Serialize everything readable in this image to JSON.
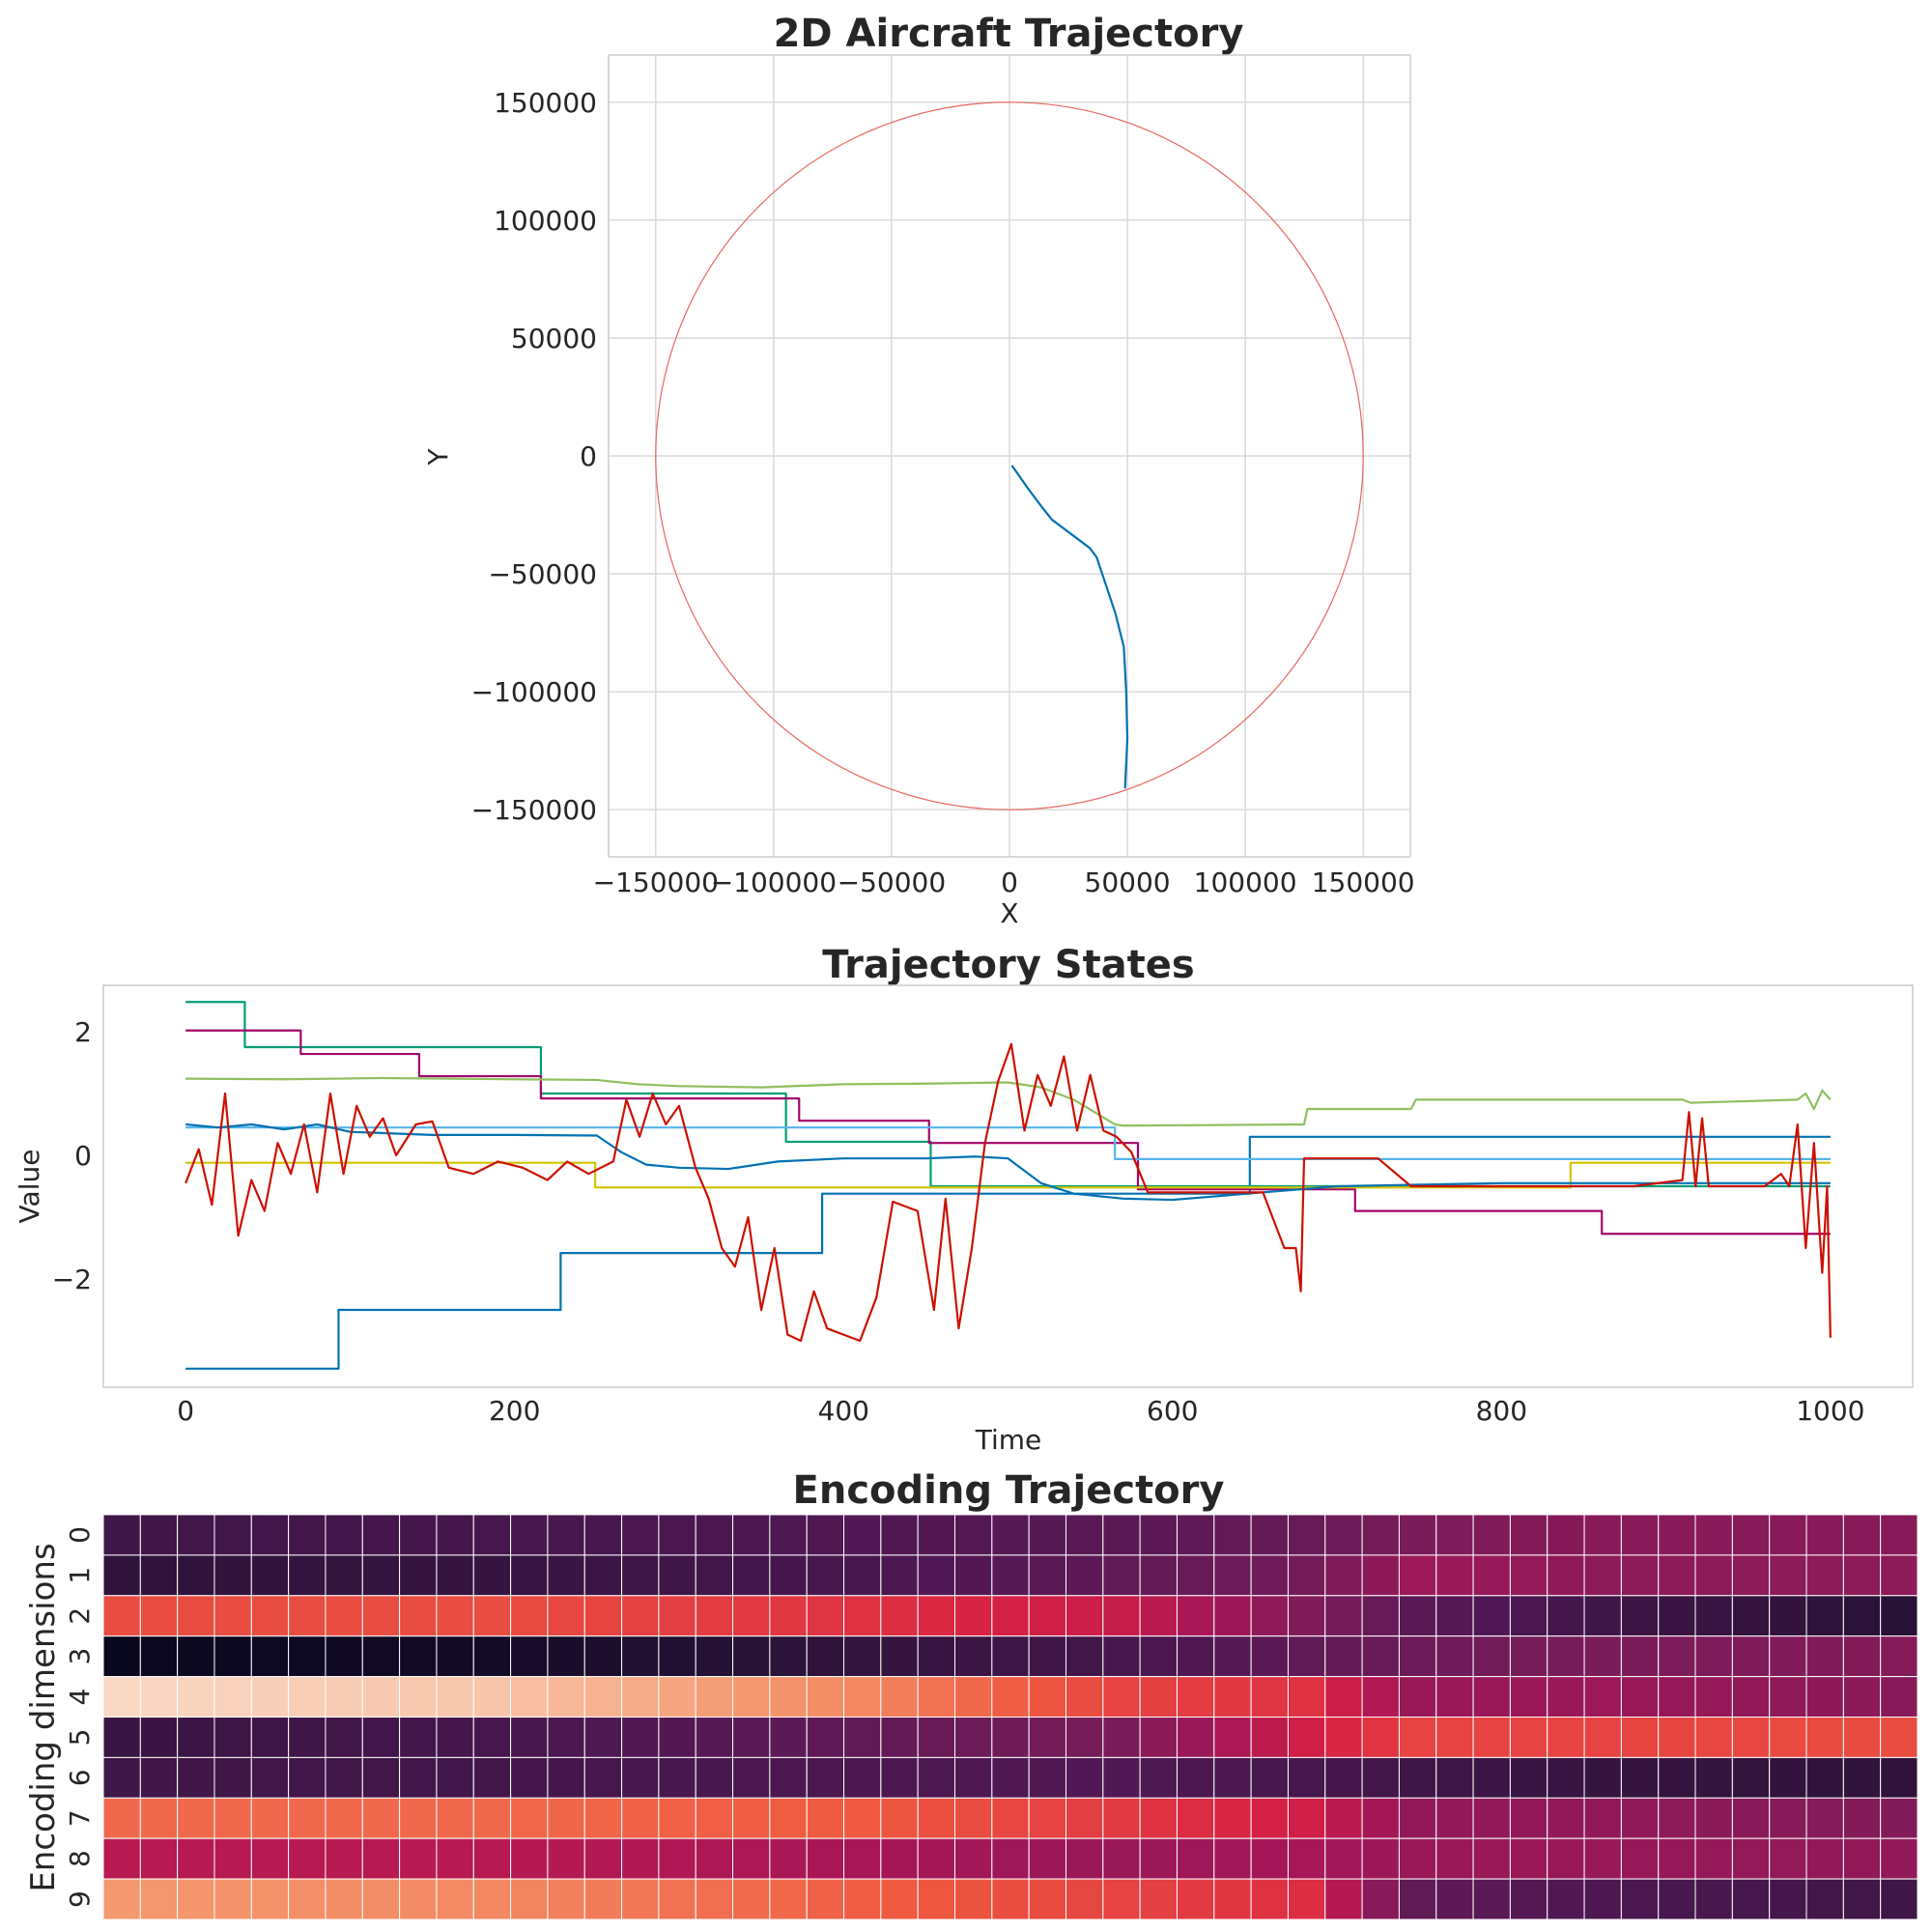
{
  "chart_data": [
    {
      "type": "line",
      "title": "2D Aircraft Trajectory",
      "xlabel": "X",
      "ylabel": "Y",
      "xlim": [
        -170000,
        170000
      ],
      "ylim": [
        -170000,
        170000
      ],
      "xticks": [
        -150000,
        -100000,
        -50000,
        0,
        50000,
        100000,
        150000
      ],
      "yticks": [
        -150000,
        -100000,
        -50000,
        0,
        50000,
        100000,
        150000
      ],
      "xtick_labels": [
        "−150000",
        "−100000",
        "−50000",
        "0",
        "50000",
        "100000",
        "150000"
      ],
      "ytick_labels": [
        "−150000",
        "−100000",
        "−50000",
        "0",
        "50000",
        "100000",
        "150000"
      ],
      "grid": true,
      "circle": {
        "cx": 0,
        "cy": 0,
        "r": 150000,
        "color": "#e8675f"
      },
      "series": [
        {
          "color": "#0072b2",
          "x": [
            49000,
            50000,
            49500,
            48500,
            45000,
            40000,
            37000,
            34000,
            26000,
            18000,
            14000,
            8000,
            1000
          ],
          "y": [
            -141000,
            -120000,
            -100000,
            -81000,
            -67000,
            -52000,
            -43000,
            -39000,
            -33000,
            -27000,
            -22000,
            -14000,
            -4000
          ]
        }
      ]
    },
    {
      "type": "line",
      "title": "Trajectory States",
      "xlabel": "Time",
      "ylabel": "Value",
      "xlim": [
        -50,
        1050
      ],
      "ylim": [
        -3.75,
        2.75
      ],
      "xticks": [
        0,
        200,
        400,
        600,
        800,
        1000
      ],
      "yticks": [
        -2,
        0,
        2
      ],
      "xtick_labels": [
        "0",
        "200",
        "400",
        "600",
        "800",
        "1000"
      ],
      "ytick_labels": [
        "−2",
        "0",
        "2"
      ],
      "grid": false,
      "series": [
        {
          "color": "#0072b2",
          "x": [
            0,
            93,
            93,
            228,
            228,
            387,
            387,
            647,
            647,
            1000
          ],
          "y": [
            -3.45,
            -3.45,
            -2.5,
            -2.5,
            -1.58,
            -1.58,
            -0.62,
            -0.62,
            0.3,
            0.3
          ]
        },
        {
          "color": "#009e73",
          "x": [
            0,
            36,
            36,
            216,
            216,
            365,
            365,
            453,
            453,
            1000
          ],
          "y": [
            2.48,
            2.48,
            1.75,
            1.75,
            1.0,
            1.0,
            0.22,
            0.22,
            -0.5,
            -0.5
          ]
        },
        {
          "color": "#a3066b",
          "x": [
            0,
            70,
            70,
            142,
            142,
            216,
            216,
            373,
            373,
            452,
            452,
            579,
            579,
            711,
            711,
            861,
            861,
            1000
          ],
          "y": [
            2.02,
            2.02,
            1.64,
            1.64,
            1.28,
            1.28,
            0.92,
            0.92,
            0.56,
            0.56,
            0.2,
            0.2,
            -0.55,
            -0.55,
            -0.9,
            -0.9,
            -1.27,
            -1.27
          ]
        },
        {
          "color": "#56b4e9",
          "x": [
            0,
            565,
            565,
            1000
          ],
          "y": [
            0.45,
            0.45,
            -0.06,
            -0.06
          ]
        },
        {
          "color": "#d4c400",
          "x": [
            0,
            249,
            249,
            842,
            842,
            1000
          ],
          "y": [
            -0.12,
            -0.12,
            -0.52,
            -0.52,
            -0.12,
            -0.12
          ]
        },
        {
          "color": "#8fbf5f",
          "x": [
            0,
            60,
            120,
            200,
            250,
            275,
            300,
            350,
            400,
            450,
            500,
            520,
            540,
            565,
            570,
            680,
            682,
            745,
            748,
            910,
            915,
            980,
            985,
            990,
            995,
            1000
          ],
          "y": [
            1.24,
            1.23,
            1.25,
            1.23,
            1.22,
            1.15,
            1.12,
            1.1,
            1.15,
            1.16,
            1.18,
            1.1,
            0.9,
            0.5,
            0.48,
            0.5,
            0.75,
            0.75,
            0.9,
            0.9,
            0.85,
            0.9,
            1.0,
            0.75,
            1.05,
            0.9
          ]
        },
        {
          "color": "#0072b2",
          "x": [
            0,
            20,
            40,
            60,
            80,
            100,
            150,
            200,
            250,
            265,
            280,
            300,
            330,
            360,
            400,
            450,
            480,
            500,
            520,
            540,
            570,
            600,
            700,
            800,
            900,
            1000
          ],
          "y": [
            0.5,
            0.45,
            0.5,
            0.42,
            0.5,
            0.38,
            0.33,
            0.33,
            0.32,
            0.05,
            -0.15,
            -0.2,
            -0.22,
            -0.1,
            -0.05,
            -0.05,
            -0.02,
            -0.05,
            -0.45,
            -0.62,
            -0.7,
            -0.72,
            -0.5,
            -0.45,
            -0.45,
            -0.45
          ]
        },
        {
          "color": "#cc1100",
          "x": [
            0,
            8,
            16,
            24,
            32,
            40,
            48,
            56,
            64,
            72,
            80,
            88,
            96,
            104,
            112,
            120,
            128,
            140,
            150,
            160,
            175,
            190,
            205,
            220,
            232,
            245,
            260,
            268,
            276,
            284,
            292,
            300,
            310,
            318,
            326,
            334,
            342,
            350,
            358,
            366,
            374,
            382,
            390,
            400,
            410,
            420,
            430,
            445,
            455,
            462,
            470,
            478,
            486,
            494,
            502,
            510,
            518,
            526,
            534,
            542,
            550,
            558,
            566,
            575,
            585,
            598,
            608,
            625,
            640,
            655,
            668,
            675,
            678,
            680,
            700,
            725,
            745,
            760,
            790,
            830,
            880,
            910,
            914,
            918,
            922,
            926,
            940,
            960,
            970,
            975,
            980,
            985,
            990,
            995,
            998,
            1000
          ],
          "y": [
            -0.45,
            0.1,
            -0.8,
            1.0,
            -1.3,
            -0.4,
            -0.9,
            0.2,
            -0.3,
            0.5,
            -0.6,
            1.0,
            -0.3,
            0.8,
            0.3,
            0.6,
            0.0,
            0.5,
            0.55,
            -0.2,
            -0.3,
            -0.1,
            -0.2,
            -0.4,
            -0.1,
            -0.3,
            -0.1,
            0.9,
            0.3,
            1.0,
            0.5,
            0.8,
            -0.2,
            -0.7,
            -1.5,
            -1.8,
            -1.0,
            -2.5,
            -1.5,
            -2.9,
            -3.0,
            -2.2,
            -2.8,
            -2.9,
            -3.0,
            -2.3,
            -0.75,
            -0.9,
            -2.5,
            -0.7,
            -2.8,
            -1.5,
            0.2,
            1.2,
            1.8,
            0.4,
            1.3,
            0.8,
            1.6,
            0.4,
            1.3,
            0.4,
            0.3,
            0.05,
            -0.6,
            -0.6,
            -0.6,
            -0.6,
            -0.6,
            -0.6,
            -1.5,
            -1.5,
            -2.2,
            -0.05,
            -0.05,
            -0.05,
            -0.5,
            -0.5,
            -0.5,
            -0.5,
            -0.5,
            -0.4,
            0.7,
            -0.5,
            0.6,
            -0.5,
            -0.5,
            -0.5,
            -0.3,
            -0.5,
            0.5,
            -1.5,
            0.2,
            -1.9,
            -0.5,
            -2.95
          ]
        }
      ]
    },
    {
      "type": "heatmap",
      "title": "Encoding Trajectory",
      "ylabel": "Encoding dimensions",
      "row_labels": [
        "0",
        "1",
        "2",
        "3",
        "4",
        "5",
        "6",
        "7",
        "8",
        "9"
      ],
      "columns": 49,
      "colormap": "rocket",
      "anchors": [
        0,
        10,
        20,
        27,
        32,
        35,
        40,
        48
      ],
      "rows": [
        [
          0.2,
          0.22,
          0.25,
          0.28,
          0.32,
          0.38,
          0.42,
          0.42
        ],
        [
          0.15,
          0.17,
          0.23,
          0.3,
          0.36,
          0.47,
          0.43,
          0.43
        ],
        [
          0.72,
          0.72,
          0.66,
          0.58,
          0.4,
          0.28,
          0.2,
          0.13
        ],
        [
          0.02,
          0.06,
          0.16,
          0.22,
          0.3,
          0.34,
          0.38,
          0.41
        ],
        [
          0.97,
          0.94,
          0.84,
          0.7,
          0.66,
          0.46,
          0.47,
          0.42
        ],
        [
          0.18,
          0.22,
          0.3,
          0.38,
          0.6,
          0.7,
          0.7,
          0.72
        ],
        [
          0.2,
          0.21,
          0.24,
          0.25,
          0.22,
          0.2,
          0.17,
          0.15
        ],
        [
          0.78,
          0.78,
          0.75,
          0.68,
          0.6,
          0.44,
          0.44,
          0.4
        ],
        [
          0.54,
          0.54,
          0.5,
          0.46,
          0.5,
          0.46,
          0.46,
          0.44
        ],
        [
          0.87,
          0.84,
          0.76,
          0.7,
          0.65,
          0.3,
          0.24,
          0.2
        ]
      ]
    }
  ]
}
